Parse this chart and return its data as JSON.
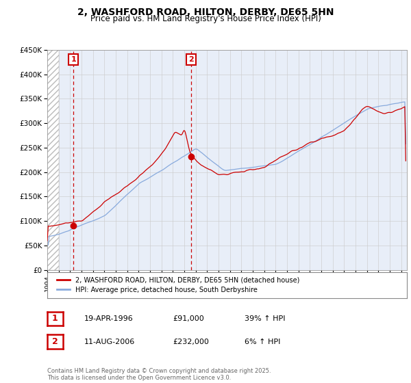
{
  "title": "2, WASHFORD ROAD, HILTON, DERBY, DE65 5HN",
  "subtitle": "Price paid vs. HM Land Registry's House Price Index (HPI)",
  "xmin_year": 1994.0,
  "xmax_year": 2025.5,
  "ymin": 0,
  "ymax": 450000,
  "yticks": [
    0,
    50000,
    100000,
    150000,
    200000,
    250000,
    300000,
    350000,
    400000,
    450000
  ],
  "ytick_labels": [
    "£0",
    "£50K",
    "£100K",
    "£150K",
    "£200K",
    "£250K",
    "£300K",
    "£350K",
    "£400K",
    "£450K"
  ],
  "purchase1_x": 1996.3,
  "purchase1_y": 91000,
  "purchase1_label": "1",
  "purchase2_x": 2006.62,
  "purchase2_y": 232000,
  "purchase2_label": "2",
  "red_line_color": "#cc0000",
  "blue_line_color": "#88aadd",
  "annotation_box_color": "#cc0000",
  "grid_color": "#cccccc",
  "bg_color": "#ffffff",
  "plot_bg_color": "#e8eef8",
  "legend_line1": "2, WASHFORD ROAD, HILTON, DERBY, DE65 5HN (detached house)",
  "legend_line2": "HPI: Average price, detached house, South Derbyshire",
  "footnote": "Contains HM Land Registry data © Crown copyright and database right 2025.\nThis data is licensed under the Open Government Licence v3.0.",
  "table_row1": [
    "1",
    "19-APR-1996",
    "£91,000",
    "39% ↑ HPI"
  ],
  "table_row2": [
    "2",
    "11-AUG-2006",
    "£232,000",
    "6% ↑ HPI"
  ],
  "xtick_years": [
    1994,
    1995,
    1996,
    1997,
    1998,
    1999,
    2000,
    2001,
    2002,
    2003,
    2004,
    2005,
    2006,
    2007,
    2008,
    2009,
    2010,
    2011,
    2012,
    2013,
    2014,
    2015,
    2016,
    2017,
    2018,
    2019,
    2020,
    2021,
    2022,
    2023,
    2024,
    2025
  ]
}
